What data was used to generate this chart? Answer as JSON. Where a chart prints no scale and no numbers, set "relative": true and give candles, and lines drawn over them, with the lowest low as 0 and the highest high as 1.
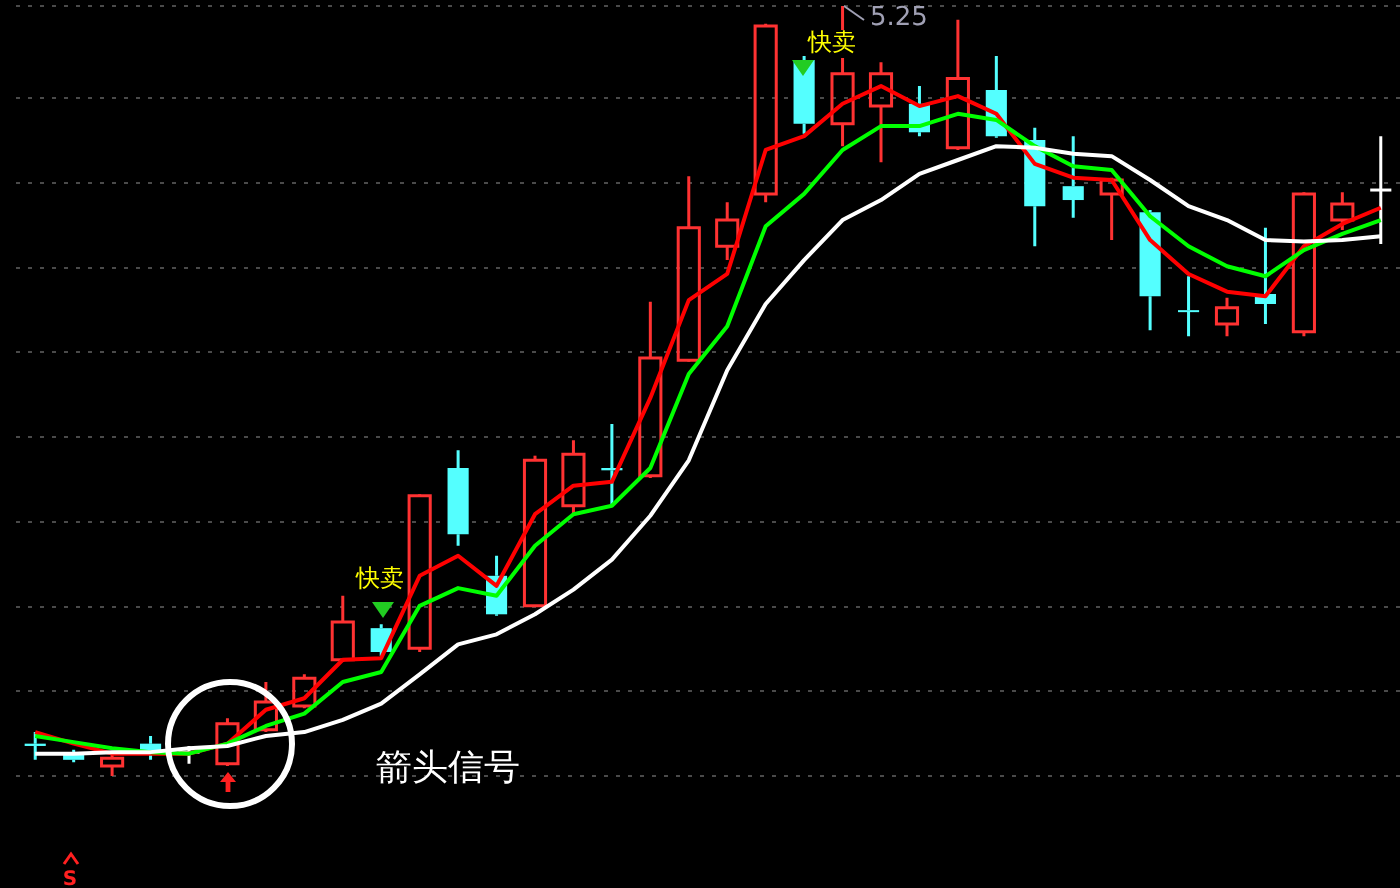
{
  "chart_data": {
    "type": "candlestick",
    "relative": true,
    "grid": "y",
    "legend": false,
    "categories": [
      null,
      null,
      null,
      null,
      null,
      null,
      null,
      null,
      null,
      null,
      null,
      null,
      null,
      null,
      null,
      null,
      null,
      null,
      null,
      null,
      null,
      null,
      null,
      null,
      null,
      null,
      null,
      null,
      null,
      null,
      null,
      null,
      null,
      null,
      null,
      null
    ],
    "ohlc": [
      [
        0.042,
        0.057,
        0.021,
        0.039
      ],
      [
        0.031,
        0.034,
        0.018,
        0.021
      ],
      [
        0.013,
        0.029,
        0,
        0.023
      ],
      [
        0.042,
        0.052,
        0.021,
        0.029
      ],
      [
        0.031,
        0.039,
        0.016,
        0.031
      ],
      [
        0.016,
        0.075,
        0.013,
        0.068
      ],
      [
        0.06,
        0.122,
        0.057,
        0.096
      ],
      [
        0.091,
        0.132,
        0.088,
        0.127
      ],
      [
        0.151,
        0.234,
        0.148,
        0.2
      ],
      [
        0.192,
        0.197,
        0.156,
        0.161
      ],
      [
        0.166,
        0.366,
        0.161,
        0.364
      ],
      [
        0.4,
        0.423,
        0.299,
        0.314
      ],
      [
        0.26,
        0.286,
        0.208,
        0.21
      ],
      [
        0.221,
        0.416,
        0.221,
        0.41
      ],
      [
        0.351,
        0.436,
        0.338,
        0.418
      ],
      [
        0.4,
        0.457,
        0.353,
        0.397
      ],
      [
        0.39,
        0.616,
        0.387,
        0.543
      ],
      [
        0.54,
        0.779,
        0.538,
        0.712
      ],
      [
        0.688,
        0.745,
        0.67,
        0.722
      ],
      [
        0.756,
        0.977,
        0.745,
        0.974
      ],
      [
        0.93,
        0.935,
        0.834,
        0.847
      ],
      [
        0.847,
        1,
        0.818,
        0.912
      ],
      [
        0.87,
        0.927,
        0.797,
        0.912
      ],
      [
        0.873,
        0.896,
        0.831,
        0.836
      ],
      [
        0.816,
        0.982,
        0.813,
        0.906
      ],
      [
        0.891,
        0.935,
        0.829,
        0.831
      ],
      [
        0.826,
        0.842,
        0.688,
        0.74
      ],
      [
        0.766,
        0.831,
        0.725,
        0.748
      ],
      [
        0.756,
        0.777,
        0.696,
        0.774
      ],
      [
        0.732,
        0.735,
        0.579,
        0.623
      ],
      [
        0.605,
        0.649,
        0.571,
        0.603
      ],
      [
        0.587,
        0.621,
        0.571,
        0.608
      ],
      [
        0.626,
        0.712,
        0.587,
        0.613
      ],
      [
        0.577,
        0.758,
        0.571,
        0.756
      ],
      [
        0.722,
        0.758,
        0.709,
        0.743
      ],
      [
        0.761,
        0.831,
        0.691,
        0.761
      ]
    ],
    "series": [
      {
        "type": "line",
        "color": "#ffffff",
        "values": [
          0.029,
          0.029,
          0.031,
          0.031,
          0.036,
          0.039,
          0.052,
          0.057,
          0.073,
          0.094,
          0.132,
          0.171,
          0.184,
          0.21,
          0.242,
          0.281,
          0.338,
          0.41,
          0.527,
          0.613,
          0.67,
          0.722,
          0.748,
          0.782,
          0.8,
          0.818,
          0.816,
          0.808,
          0.805,
          0.774,
          0.74,
          0.722,
          0.696,
          0.694,
          0.696,
          0.701
        ]
      },
      {
        "type": "line",
        "color": "#00ff00",
        "values": [
          0.052,
          0.044,
          0.036,
          0.031,
          0.029,
          0.042,
          0.065,
          0.081,
          0.122,
          0.135,
          0.221,
          0.244,
          0.234,
          0.299,
          0.34,
          0.351,
          0.4,
          0.522,
          0.584,
          0.714,
          0.756,
          0.813,
          0.844,
          0.844,
          0.86,
          0.852,
          0.818,
          0.792,
          0.787,
          0.727,
          0.688,
          0.662,
          0.649,
          0.683,
          0.704,
          0.722
        ]
      },
      {
        "type": "line",
        "color": "#ff0000",
        "values": [
          0.057,
          0.042,
          0.029,
          0.029,
          0.029,
          0.042,
          0.086,
          0.101,
          0.151,
          0.153,
          0.26,
          0.286,
          0.247,
          0.34,
          0.377,
          0.382,
          0.491,
          0.618,
          0.652,
          0.813,
          0.831,
          0.873,
          0.896,
          0.87,
          0.883,
          0.86,
          0.795,
          0.777,
          0.774,
          0.696,
          0.652,
          0.629,
          0.623,
          0.688,
          0.717,
          0.738
        ]
      }
    ],
    "annotations": [
      "5.25",
      "快卖",
      "快卖",
      "箭头信号",
      "S"
    ]
  }
}
